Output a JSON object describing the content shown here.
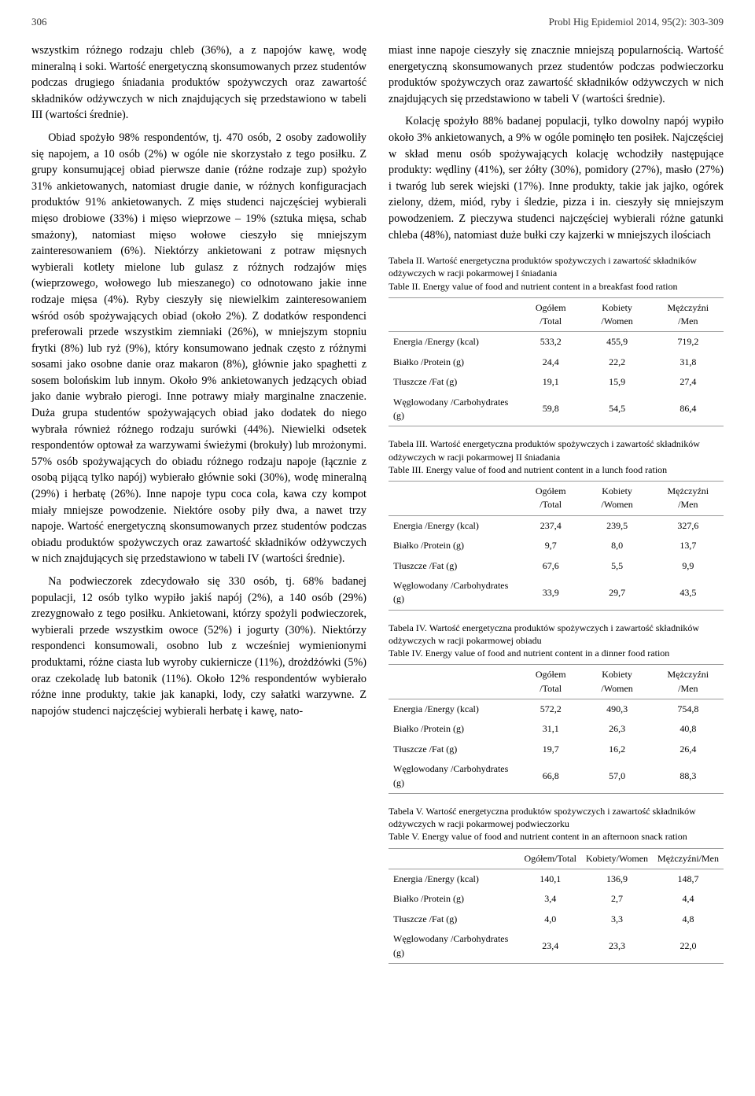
{
  "header": {
    "page_number": "306",
    "journal": "Probl Hig Epidemiol 2014, 95(2): 303-309"
  },
  "left_column": {
    "p1": "wszystkim różnego rodzaju chleb (36%), a z napojów kawę, wodę mineralną i soki. Wartość energetyczną skonsumowanych przez studentów podczas drugiego śniadania produktów spożywczych oraz zawartość składników odżywczych w nich znajdujących się przedstawiono w tabeli III (wartości średnie).",
    "p2": "Obiad spożyło 98% respondentów, tj. 470 osób, 2 osoby zadowoliły się napojem, a 10 osób (2%) w ogóle nie skorzystało z tego posiłku. Z grupy konsumującej obiad pierwsze danie (różne rodzaje zup) spożyło 31% ankietowanych, natomiast drugie danie, w różnych konfiguracjach produktów 91% ankietowanych. Z mięs studenci najczęściej wybierali mięso drobiowe (33%) i mięso wieprzowe – 19% (sztuka mięsa, schab smażony), natomiast mięso wołowe cieszyło się mniejszym zainteresowaniem (6%). Niektórzy ankietowani z potraw mięsnych wybierali kotlety mielone lub gulasz z różnych rodzajów mięs (wieprzowego, wołowego lub mieszanego) co odnotowano jakie inne rodzaje mięsa (4%). Ryby cieszyły się niewielkim zainteresowaniem wśród osób spożywających obiad (około 2%). Z dodatków respondenci preferowali przede wszystkim ziemniaki (26%), w mniejszym stopniu frytki (8%) lub ryż (9%), który konsumowano jednak często z różnymi sosami jako osobne danie oraz makaron (8%), głównie jako spaghetti z sosem bolońskim lub innym. Około 9% ankietowanych jedzących obiad jako danie wybrało pierogi. Inne potrawy miały marginalne znaczenie. Duża grupa studentów spożywających obiad jako dodatek do niego wybrała również różnego rodzaju surówki (44%). Niewielki odsetek respondentów optował za warzywami świeżymi (brokuły) lub mrożonymi. 57% osób spożywających do obiadu różnego rodzaju napoje (łącznie z osobą pijącą tylko napój) wybierało głównie soki (30%), wodę mineralną (29%) i herbatę (26%). Inne napoje typu coca cola, kawa czy kompot miały mniejsze powodzenie. Niektóre osoby piły dwa, a nawet trzy napoje. Wartość energetyczną skonsumowanych przez studentów podczas obiadu produktów spożywczych oraz zawartość składników odżywczych w nich znajdujących się przedstawiono w tabeli IV (wartości średnie).",
    "p3": "Na podwieczorek zdecydowało się 330 osób, tj. 68% badanej populacji, 12 osób tylko wypiło jakiś napój (2%), a 140 osób (29%) zrezygnowało z tego posiłku. Ankietowani, którzy spożyli podwieczorek, wybierali przede wszystkim owoce (52%) i jogurty (30%). Niektórzy respondenci konsumowali, osobno lub z wcześniej wymienionymi produktami, różne ciasta lub wyroby cukiernicze (11%), drożdżówki (5%) oraz czekoladę lub batonik (11%). Około 12% respondentów wybierało różne inne produkty, takie jak kanapki, lody, czy sałatki warzywne. Z napojów studenci najczęściej wybierali herbatę i kawę, nato-"
  },
  "right_column": {
    "p1": "miast inne napoje cieszyły się znacznie mniejszą popularnością. Wartość energetyczną skonsumowanych przez studentów podczas podwieczorku produktów spożywczych oraz zawartość składników odżywczych w nich znajdujących się przedstawiono w tabeli V (wartości średnie).",
    "p2": "Kolację spożyło 88% badanej populacji, tylko dowolny napój wypiło około 3% ankietowanych, a 9% w ogóle pominęło ten posiłek. Najczęściej w skład menu osób spożywających kolację wchodziły następujące produkty: wędliny (41%), ser żółty (30%), pomidory (27%), masło (27%) i twaróg lub serek wiejski (17%). Inne produkty, takie jak jajko, ogórek zielony, dżem, miód, ryby i śledzie, pizza i in. cieszyły się mniejszym powodzeniem. Z pieczywa studenci najczęściej wybierali różne gatunki chleba (48%), natomiast duże bułki czy kajzerki w mniejszych ilościach"
  },
  "tables": {
    "common": {
      "col_total": "Ogółem /Total",
      "col_women": "Kobiety /Women",
      "col_men": "Mężczyźni /Men",
      "row_energy": "Energia /Energy (kcal)",
      "row_protein": "Białko /Protein (g)",
      "row_fat": "Tłuszcze /Fat (g)",
      "row_carbs": "Węglowodany /Carbohydrates (g)"
    },
    "t2": {
      "caption_pl": "Tabela II. Wartość energetyczna produktów spożywczych i zawartość składników odżywczych w racji pokarmowej I śniadania",
      "caption_en": "Table II. Energy value of food and nutrient content in a breakfast food ration",
      "energy": {
        "total": "533,2",
        "women": "455,9",
        "men": "719,2"
      },
      "protein": {
        "total": "24,4",
        "women": "22,2",
        "men": "31,8"
      },
      "fat": {
        "total": "19,1",
        "women": "15,9",
        "men": "27,4"
      },
      "carbs": {
        "total": "59,8",
        "women": "54,5",
        "men": "86,4"
      }
    },
    "t3": {
      "caption_pl": "Tabela III. Wartość energetyczna produktów spożywczych i zawartość składników odżywczych w racji pokarmowej II śniadania",
      "caption_en": "Table III. Energy value of food and nutrient content in a lunch food ration",
      "energy": {
        "total": "237,4",
        "women": "239,5",
        "men": "327,6"
      },
      "protein": {
        "total": "9,7",
        "women": "8,0",
        "men": "13,7"
      },
      "fat": {
        "total": "67,6",
        "women": "5,5",
        "men": "9,9"
      },
      "carbs": {
        "total": "33,9",
        "women": "29,7",
        "men": "43,5"
      }
    },
    "t4": {
      "caption_pl": "Tabela IV. Wartość energetyczna produktów spożywczych i zawartość składników odżywczych w racji pokarmowej obiadu",
      "caption_en": "Table IV. Energy value of food and nutrient content in a dinner food ration",
      "energy": {
        "total": "572,2",
        "women": "490,3",
        "men": "754,8"
      },
      "protein": {
        "total": "31,1",
        "women": "26,3",
        "men": "40,8"
      },
      "fat": {
        "total": "19,7",
        "women": "16,2",
        "men": "26,4"
      },
      "carbs": {
        "total": "66,8",
        "women": "57,0",
        "men": "88,3"
      }
    },
    "t5": {
      "caption_pl": "Tabela V. Wartość energetyczna produktów spożywczych i zawartość składników odżywczych w racji pokarmowej podwieczorku",
      "caption_en": "Table V. Energy value of food and nutrient content in an afternoon snack ration",
      "col_total": "Ogółem/Total",
      "col_women": "Kobiety/Women",
      "col_men": "Mężczyźni/Men",
      "energy": {
        "total": "140,1",
        "women": "136,9",
        "men": "148,7"
      },
      "protein": {
        "total": "3,4",
        "women": "2,7",
        "men": "4,4"
      },
      "fat": {
        "total": "4,0",
        "women": "3,3",
        "men": "4,8"
      },
      "carbs": {
        "total": "23,4",
        "women": "23,3",
        "men": "22,0"
      }
    }
  }
}
